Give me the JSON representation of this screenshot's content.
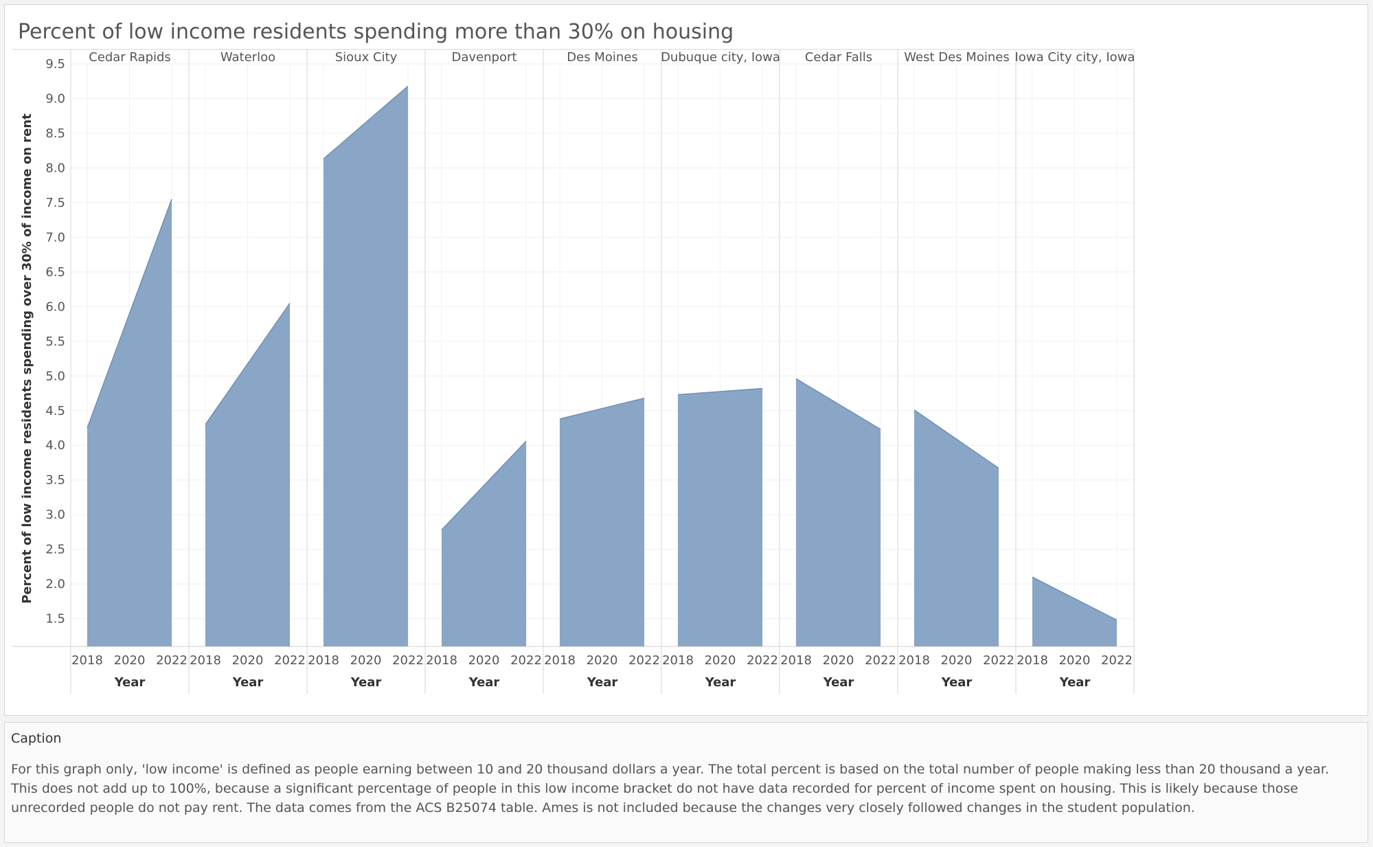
{
  "chart_data": {
    "type": "area",
    "title": "Percent of low income residents spending more than 30% on housing",
    "ylabel": "Percent of low income residents spending over 30% of income on rent",
    "xlabel": "Year",
    "ylim": [
      1.1,
      9.5
    ],
    "yticks": [
      1.5,
      2.0,
      2.5,
      3.0,
      3.5,
      4.0,
      4.5,
      5.0,
      5.5,
      6.0,
      6.5,
      7.0,
      7.5,
      8.0,
      8.5,
      9.0,
      9.5
    ],
    "x_ticks": [
      "2018",
      "2020",
      "2022"
    ],
    "x": [
      2018,
      2022
    ],
    "grid": true,
    "panels": [
      {
        "name": "Cedar Rapids",
        "values": [
          4.25,
          7.55
        ]
      },
      {
        "name": "Waterloo",
        "values": [
          4.3,
          6.05
        ]
      },
      {
        "name": "Sioux City",
        "values": [
          8.13,
          9.18
        ]
      },
      {
        "name": "Davenport",
        "values": [
          2.78,
          4.06
        ]
      },
      {
        "name": "Des Moines",
        "values": [
          4.38,
          4.68
        ]
      },
      {
        "name": "Dubuque city, Iowa",
        "values": [
          4.73,
          4.82
        ]
      },
      {
        "name": "Cedar Falls",
        "values": [
          4.96,
          4.23
        ]
      },
      {
        "name": "West Des Moines",
        "values": [
          4.51,
          3.67
        ]
      },
      {
        "name": "Iowa City city, Iowa",
        "values": [
          2.1,
          1.48
        ]
      }
    ],
    "colors": {
      "fill": "#8aa6c6",
      "stroke": "#6f8fb5"
    }
  },
  "caption": {
    "title": "Caption",
    "text": "For this graph only, 'low income' is defined as people earning between 10 and 20 thousand dollars a year. The total percent is based on the total number of people making less than 20 thousand a year. This does not add up to 100%, because a significant percentage of people in this low income bracket do not have data recorded for percent of income spent on housing. This is likely because those unrecorded people do not pay rent. The data comes from the ACS B25074 table. Ames is not included because the changes  very closely followed changes in the student population."
  }
}
